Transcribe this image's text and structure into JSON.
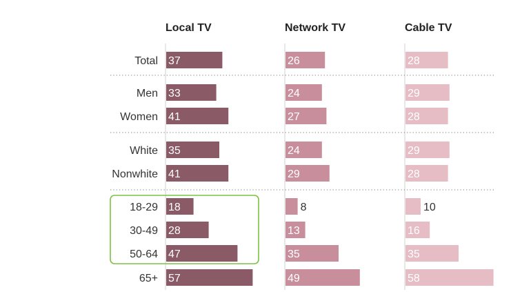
{
  "chart_data": {
    "type": "bar",
    "orientation": "horizontal",
    "title": "",
    "xlabel": "",
    "ylabel": "",
    "categories": [
      "Total",
      "Men",
      "Women",
      "White",
      "Nonwhite",
      "18-29",
      "30-49",
      "50-64",
      "65+"
    ],
    "groups": [
      [
        "Total"
      ],
      [
        "Men",
        "Women"
      ],
      [
        "White",
        "Nonwhite"
      ],
      [
        "18-29",
        "30-49",
        "50-64",
        "65+"
      ]
    ],
    "series": [
      {
        "name": "Local TV",
        "color": "#8a5a66",
        "values": [
          37,
          33,
          41,
          35,
          41,
          18,
          28,
          47,
          57
        ]
      },
      {
        "name": "Network TV",
        "color": "#c98e9b",
        "values": [
          26,
          24,
          27,
          24,
          29,
          8,
          13,
          35,
          49
        ]
      },
      {
        "name": "Cable TV",
        "color": "#e6bcc5",
        "values": [
          28,
          29,
          28,
          29,
          28,
          10,
          16,
          35,
          58
        ]
      }
    ],
    "xlim": [
      0,
      60
    ],
    "highlight": {
      "categories": [
        "18-29",
        "30-49",
        "50-64"
      ],
      "color": "#7cc242"
    }
  }
}
